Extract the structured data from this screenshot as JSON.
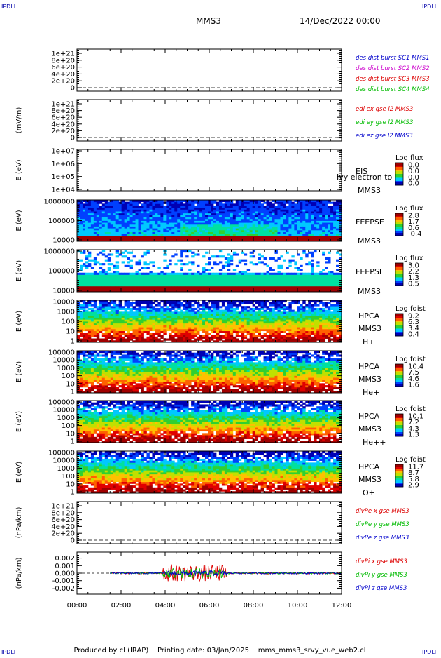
{
  "header": {
    "corner_tl": "IPDLI",
    "corner_tr": "IPDLI",
    "corner_bl": "IPDLI",
    "corner_br": "IPDLI",
    "spacecraft": "MMS3",
    "date": "14/Dec/2022 00:00"
  },
  "footer": {
    "text": "Produced by cl (IRAP)    Printing date: 03/Jan/2025    mms_mms3_srvy_vue_web2.cl"
  },
  "colors": {
    "cmap": [
      "#0000b4",
      "#0040ff",
      "#00c8ff",
      "#00e0a0",
      "#30d030",
      "#c0e000",
      "#ffc000",
      "#ff6000",
      "#e00000",
      "#a00000"
    ],
    "series_blue": "#0000cc",
    "series_magenta": "#cc00cc",
    "series_red": "#dd0000",
    "series_green": "#00bb00"
  },
  "chart_data": [
    {
      "id": "dist",
      "type": "line",
      "ylabel": "",
      "yticks": [
        "1e+21",
        "8e+20",
        "6e+20",
        "4e+20",
        "2e+20",
        "0"
      ],
      "legend": [
        {
          "text": "des dist burst SC1 MMS1",
          "color": "#0000cc"
        },
        {
          "text": "des dist burst SC2 MMS2",
          "color": "#cc00cc"
        },
        {
          "text": "des dist burst SC3 MMS3",
          "color": "#dd0000"
        },
        {
          "text": "des dist burst SC4 MMS4",
          "color": "#00bb00"
        }
      ],
      "series": []
    },
    {
      "id": "edi",
      "type": "line",
      "ylabel": "(mV/m)",
      "yticks": [
        "1e+21",
        "8e+20",
        "6e+20",
        "4e+20",
        "2e+20",
        "0"
      ],
      "legend": [
        {
          "text": "edi ex gse l2 MMS3",
          "color": "#dd0000"
        },
        {
          "text": "edi ey gse l2 MMS3",
          "color": "#00bb00"
        },
        {
          "text": "edi ez gse l2 MMS3",
          "color": "#0000cc"
        }
      ],
      "series": []
    },
    {
      "id": "eis",
      "type": "heatmap",
      "ylabel": "E (eV)",
      "yticks": [
        "1e+07",
        "1e+06",
        "1e+05",
        "1e+04"
      ],
      "labels": [
        "EIS",
        "MMS3"
      ],
      "overlay": "Ivy electron to",
      "cbar_title": "Log flux",
      "cbar_ticks": [
        "0.0",
        "0.0",
        "0.0",
        "0.0"
      ],
      "profile": null
    },
    {
      "id": "feepse",
      "type": "heatmap",
      "ylabel": "E (eV)",
      "yticks": [
        "1000000",
        "100000",
        "10000"
      ],
      "labels": [
        "FEEPSE",
        "MMS3"
      ],
      "cbar_title": "Log flux",
      "cbar_ticks": [
        "2.8",
        "1.7",
        "0.6",
        "-0.4"
      ],
      "profile": "feepse"
    },
    {
      "id": "feepsi",
      "type": "heatmap",
      "ylabel": "E (eV)",
      "yticks": [
        "1000000",
        "100000",
        "10000"
      ],
      "labels": [
        "FEEPSI",
        "MMS3"
      ],
      "cbar_title": "Log flux",
      "cbar_ticks": [
        "3.0",
        "2.2",
        "1.3",
        "0.5"
      ],
      "profile": "feepsi"
    },
    {
      "id": "hpca_h",
      "type": "heatmap",
      "ylabel": "E (eV)",
      "yticks": [
        "10000",
        "1000",
        "100",
        "10",
        "1"
      ],
      "labels": [
        "HPCA",
        "MMS3",
        "H+"
      ],
      "cbar_title": "Log fdist",
      "cbar_ticks": [
        "9.2",
        "6.3",
        "3.4",
        "0.4"
      ],
      "profile": "hpca"
    },
    {
      "id": "hpca_he",
      "type": "heatmap",
      "ylabel": "E (eV)",
      "yticks": [
        "100000",
        "10000",
        "1000",
        "100",
        "10",
        "1"
      ],
      "labels": [
        "HPCA",
        "MMS3",
        "He+"
      ],
      "cbar_title": "Log fdist",
      "cbar_ticks": [
        "10.4",
        "7.5",
        "4.6",
        "1.6"
      ],
      "profile": "hpca"
    },
    {
      "id": "hpca_he2",
      "type": "heatmap",
      "ylabel": "E (eV)",
      "yticks": [
        "100000",
        "10000",
        "1000",
        "100",
        "10",
        "1"
      ],
      "labels": [
        "HPCA",
        "MMS3",
        "He++"
      ],
      "cbar_title": "Log fdist",
      "cbar_ticks": [
        "10.1",
        "7.2",
        "4.3",
        "1.3"
      ],
      "profile": "hpca"
    },
    {
      "id": "hpca_o",
      "type": "heatmap",
      "ylabel": "E (eV)",
      "yticks": [
        "100000",
        "10000",
        "1000",
        "100",
        "10",
        "1"
      ],
      "labels": [
        "HPCA",
        "MMS3",
        "O+"
      ],
      "cbar_title": "Log fdist",
      "cbar_ticks": [
        "11.7",
        "8.7",
        "5.8",
        "2.9"
      ],
      "profile": "hpca"
    },
    {
      "id": "divpe",
      "type": "line",
      "ylabel": "(nPa/km)",
      "yticks": [
        "1e+21",
        "8e+20",
        "6e+20",
        "4e+20",
        "2e+20",
        "0"
      ],
      "legend": [
        {
          "text": "divPe x gse MMS3",
          "color": "#dd0000"
        },
        {
          "text": "divPe y gse MMS3",
          "color": "#00bb00"
        },
        {
          "text": "divPe z gse MMS3",
          "color": "#0000cc"
        }
      ],
      "series": []
    },
    {
      "id": "divpi",
      "type": "line",
      "ylabel": "(nPa/km)",
      "yticks": [
        "0.002",
        "0.001",
        "0.000",
        "-0.001",
        "-0.002"
      ],
      "ylim": [
        -0.0028,
        0.0028
      ],
      "legend": [
        {
          "text": "divPi x gse MMS3",
          "color": "#dd0000"
        },
        {
          "text": "divPi y gse MMS3",
          "color": "#00bb00"
        },
        {
          "text": "divPi z gse MMS3",
          "color": "#0000cc"
        }
      ],
      "data_start_hour": 1.5,
      "active_window": [
        3.9,
        6.8
      ]
    }
  ],
  "xaxis": {
    "range_hours": [
      0,
      12
    ],
    "ticks": [
      "00:00",
      "02:00",
      "04:00",
      "06:00",
      "08:00",
      "10:00",
      "12:00"
    ]
  }
}
